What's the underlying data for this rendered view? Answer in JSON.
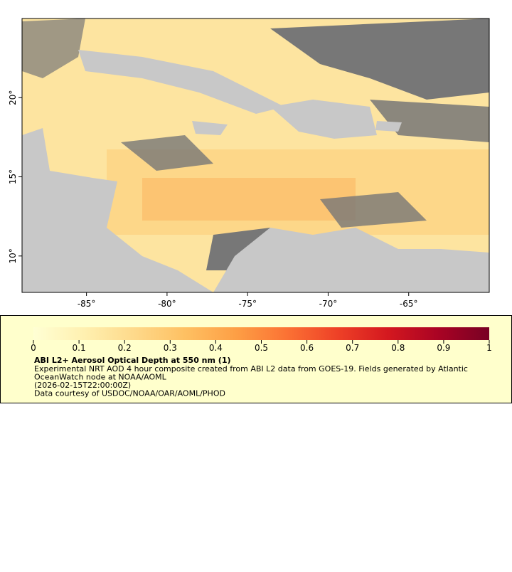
{
  "map": {
    "xlim": [
      -89,
      -60
    ],
    "ylim": [
      7.7,
      25
    ],
    "xticks": [
      {
        "value": -85,
        "label": "-85°"
      },
      {
        "value": -80,
        "label": "-80°"
      },
      {
        "value": -75,
        "label": "-75°"
      },
      {
        "value": -70,
        "label": "-70°"
      },
      {
        "value": -65,
        "label": "-65°"
      }
    ],
    "yticks": [
      {
        "value": 10,
        "label": "10°"
      },
      {
        "value": 15,
        "label": "15°"
      },
      {
        "value": 20,
        "label": "20°"
      }
    ]
  },
  "colorbar": {
    "lim": [
      0,
      1
    ],
    "ticks": [
      0,
      0.1,
      0.2,
      0.3,
      0.4,
      0.5,
      0.6,
      0.7,
      0.8,
      0.9,
      1
    ],
    "colors": [
      "#ffffd4",
      "#fff0b0",
      "#fed98a",
      "#fec062",
      "#fd9f45",
      "#fb7234",
      "#ee4127",
      "#d4181f",
      "#a90324",
      "#780124"
    ]
  },
  "legend": {
    "title": "ABI L2+ Aerosol Optical Depth at 550 nm (1)",
    "lines": [
      "Experimental NRT AOD 4 hour composite created from ABI L2 data from GOES-19. Fields generated by Atlantic",
      "OceanWatch node at NOAA/AOML",
      "(2026-02-15T22:00:00Z)",
      "Data courtesy of USDOC/NOAA/OAR/AOML/PHOD"
    ]
  }
}
